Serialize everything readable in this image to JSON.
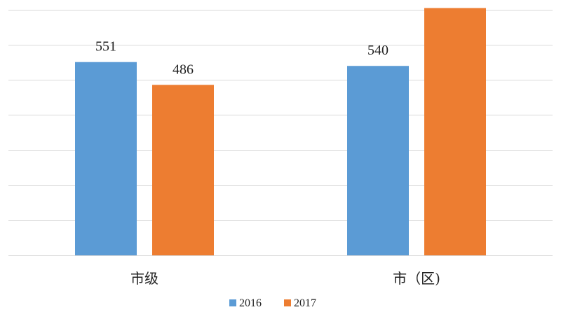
{
  "chart_data": {
    "type": "bar",
    "categories": [
      "市级",
      "市（区)"
    ],
    "series": [
      {
        "name": "2016",
        "values": [
          551,
          540
        ],
        "color": "#5b9bd5"
      },
      {
        "name": "2017",
        "values": [
          486,
          705
        ],
        "color": "#ed7d31"
      }
    ],
    "ylim": [
      0,
      700
    ],
    "grid": true,
    "legend_position": "bottom",
    "title": "",
    "xlabel": "",
    "ylabel": ""
  }
}
